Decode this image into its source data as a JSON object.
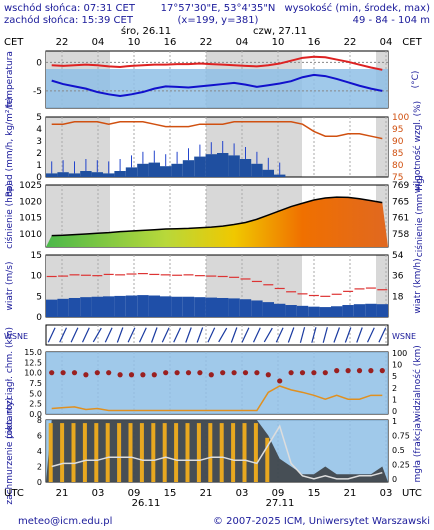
{
  "header": {
    "sunrise": "wschód słońca: 07:31 CET",
    "sunset": "zachód słońca: 15:39 CET",
    "coords": "17°57'30\"E, 53°4'35\"N",
    "grid": "(x=199, y=381)",
    "elevation_label": "wysokość (min, środek, max)",
    "elevation_values": "49 - 84 - 104 m",
    "day1": "śro, 26.11",
    "day2": "czw, 27.11",
    "tz": "CET",
    "top_hours": [
      "22",
      "04",
      "10",
      "16",
      "22",
      "04",
      "10",
      "16",
      "22",
      "04"
    ]
  },
  "footer": {
    "tz": "UTC",
    "hours": [
      "21",
      "03",
      "09",
      "15",
      "21",
      "03",
      "09",
      "15",
      "21",
      "03"
    ],
    "date1": "26.11",
    "date2": "27.11",
    "email": "meteo@icm.edu.pl",
    "copyright": "© 2007-2025 ICM, Uniwersytet Warszawski"
  },
  "colors": {
    "temp_red": "#dd2222",
    "temp_blue": "#1111cc",
    "dew_pink": "#e8a0a0",
    "sky": "#8fc0e6",
    "precip": "#1f4fa0",
    "humidity": "#d05010",
    "wind_bar": "#1f4fa8",
    "cloud_dark": "#303030",
    "cloud_bars": "#e8a820",
    "fog_line": "#dddddd"
  },
  "chart_data": [
    {
      "type": "line",
      "panel": "temperature",
      "ylabel_left": "temperatura",
      "ylabel_right": "(°C)",
      "yticks": [
        "0",
        "-5"
      ],
      "ylim": [
        -8,
        2
      ],
      "series": [
        {
          "values": [
            -0.5,
            -0.6,
            -0.5,
            -0.4,
            -0.5,
            -0.7,
            -0.8,
            -0.6,
            -0.5,
            -0.4,
            -0.4,
            -0.3,
            -0.3,
            -0.2,
            -0.3,
            -0.4,
            -0.5,
            -0.6,
            -0.7,
            -0.5,
            -0.2,
            0.3,
            0.8,
            1.0,
            0.9,
            0.5,
            0.1,
            -0.4,
            -0.9,
            -1.3
          ]
        },
        {
          "values": [
            -3.2,
            -3.8,
            -4.2,
            -4.6,
            -5.2,
            -5.6,
            -5.9,
            -5.6,
            -5.2,
            -4.6,
            -4.2,
            -4.3,
            -4.4,
            -4.2,
            -4.0,
            -3.8,
            -3.6,
            -3.9,
            -4.3,
            -4.0,
            -3.7,
            -3.3,
            -2.6,
            -2.2,
            -2.4,
            -2.9,
            -3.5,
            -4.1,
            -4.6,
            -5.0
          ]
        }
      ]
    },
    {
      "type": "bar",
      "panel": "precipitation",
      "ylabel_left": "opad (mm/h, kg/m²/h)",
      "ylabel_right": "wilgotność wzgl. (%)",
      "yticks_left": [
        "5",
        "4",
        "3",
        "2",
        "1",
        "0"
      ],
      "yticks_right": [
        "100",
        "95",
        "90",
        "85",
        "80",
        "75"
      ],
      "ylim": [
        0,
        5
      ],
      "values": [
        0.3,
        0.4,
        0.3,
        0.5,
        0.4,
        0.3,
        0.5,
        0.8,
        1.1,
        1.2,
        0.9,
        1.1,
        1.4,
        1.7,
        1.9,
        2.0,
        1.8,
        1.5,
        1.1,
        0.6,
        0.2,
        0,
        0,
        0,
        0,
        0,
        0,
        0,
        0,
        0
      ],
      "humidity_ylim": [
        75,
        100
      ],
      "humidity": [
        97,
        97,
        98,
        98,
        98,
        97,
        98,
        98,
        98,
        97,
        96,
        96,
        96,
        97,
        97,
        97,
        98,
        98,
        98,
        98,
        98,
        98,
        97,
        94,
        92,
        92,
        93,
        93,
        92,
        91
      ]
    },
    {
      "type": "area",
      "panel": "pressure",
      "ylabel_left": "ciśnienie (hPa)",
      "ylabel_right": "ciśnienie (mm Hg)",
      "yticks_left": [
        "1025",
        "1020",
        "1015",
        "1010"
      ],
      "yticks_right": [
        "769",
        "765",
        "761",
        "758"
      ],
      "ylim": [
        1006,
        1025
      ],
      "values": [
        1009.5,
        1009.6,
        1009.8,
        1010,
        1010.2,
        1010.4,
        1010.7,
        1010.9,
        1011.1,
        1011.3,
        1011.5,
        1011.6,
        1011.7,
        1011.9,
        1012.1,
        1012.4,
        1012.9,
        1013.5,
        1014.5,
        1015.8,
        1017.1,
        1018.4,
        1019.4,
        1020.4,
        1021.0,
        1021.3,
        1021.2,
        1020.8,
        1020.2,
        1019.6
      ]
    },
    {
      "type": "bar",
      "panel": "wind",
      "ylabel_left": "wiatr (m/s)",
      "ylabel_right": "wiatr (km/h)",
      "yticks_left": [
        "15",
        "10",
        "5",
        "0"
      ],
      "yticks_right": [
        "54",
        "36",
        "18"
      ],
      "ylim": [
        0,
        15
      ],
      "values": [
        4.2,
        4.4,
        4.6,
        4.8,
        4.9,
        5.0,
        5.1,
        5.2,
        5.3,
        5.2,
        5.0,
        4.9,
        4.9,
        4.8,
        4.7,
        4.6,
        4.5,
        4.3,
        4.0,
        3.6,
        3.2,
        2.9,
        2.7,
        2.5,
        2.4,
        2.6,
        2.9,
        3.1,
        3.2,
        3.1
      ],
      "gusts": [
        9.8,
        9.9,
        10.2,
        10.1,
        10.0,
        10.3,
        10.2,
        10.4,
        10.5,
        10.3,
        10.2,
        10.1,
        10.2,
        10.0,
        9.9,
        9.8,
        9.6,
        9.2,
        8.6,
        7.8,
        6.9,
        6.1,
        5.6,
        5.2,
        5.0,
        5.5,
        6.2,
        6.8,
        7.0,
        6.6
      ]
    },
    {
      "type": "scatter",
      "panel": "wind_direction",
      "ylabel_left": "W S N E",
      "directions_deg": [
        205,
        205,
        205,
        205,
        210,
        205,
        200,
        205,
        205,
        200,
        205,
        205,
        200,
        200,
        205,
        210,
        200,
        205,
        205,
        210,
        205,
        200,
        195,
        195,
        195,
        200,
        200,
        200,
        205,
        205
      ]
    },
    {
      "type": "scatter",
      "panel": "visibility",
      "ylabel_left": "pion. rozciągł. chm. (km)",
      "ylabel_right": "widzialność (km)",
      "yticks_left": [
        "15.0",
        "12.5",
        "10.0",
        "7.5",
        "5.0",
        "2.5",
        "0.0"
      ],
      "yticks_right": [
        "100",
        "10",
        "5",
        "2",
        "1",
        "0"
      ],
      "ylim": [
        0,
        15
      ],
      "cloud_top_km": [
        10,
        10,
        10,
        9.5,
        10,
        10,
        9.5,
        9.5,
        9.5,
        9.5,
        10,
        10,
        10,
        10,
        9.5,
        10,
        10,
        10,
        10,
        9.5,
        8,
        10,
        10,
        10,
        10,
        10.5,
        10.5,
        10.5,
        10.5,
        10.5
      ],
      "visibility_km": [
        0.5,
        0.6,
        0.7,
        0.4,
        0.5,
        0.3,
        0.3,
        0.3,
        0.3,
        0.3,
        0.3,
        0.3,
        0.3,
        0.3,
        0.3,
        0.3,
        0.3,
        0.3,
        0.3,
        4,
        7,
        5,
        4,
        3,
        2,
        3,
        2,
        2,
        3,
        3
      ]
    },
    {
      "type": "bar",
      "panel": "clouds",
      "ylabel_left": "zachmurzenie (oktanty)",
      "ylabel_right": "mgła (frakcja)",
      "yticks_left": [
        "8",
        "6",
        "4",
        "2",
        "0"
      ],
      "yticks_right": [
        "1",
        "0.75",
        "0.5",
        "0.25",
        "0"
      ],
      "ylim": [
        0,
        8
      ],
      "cloud_octas": [
        8,
        8,
        8,
        8,
        8,
        8,
        8,
        8,
        8,
        8,
        8,
        8,
        8,
        8,
        8,
        8,
        8,
        8,
        8,
        6,
        3,
        2,
        1,
        1,
        2,
        1,
        1,
        1,
        1,
        2
      ],
      "fog_fraction": [
        0.25,
        0.3,
        0.3,
        0.35,
        0.35,
        0.4,
        0.4,
        0.4,
        0.35,
        0.35,
        0.4,
        0.35,
        0.35,
        0.35,
        0.4,
        0.4,
        0.35,
        0.35,
        0.3,
        0.6,
        0.9,
        0.3,
        0.1,
        0.05,
        0.1,
        0.05,
        0.05,
        0.1,
        0.1,
        0.15
      ]
    }
  ]
}
